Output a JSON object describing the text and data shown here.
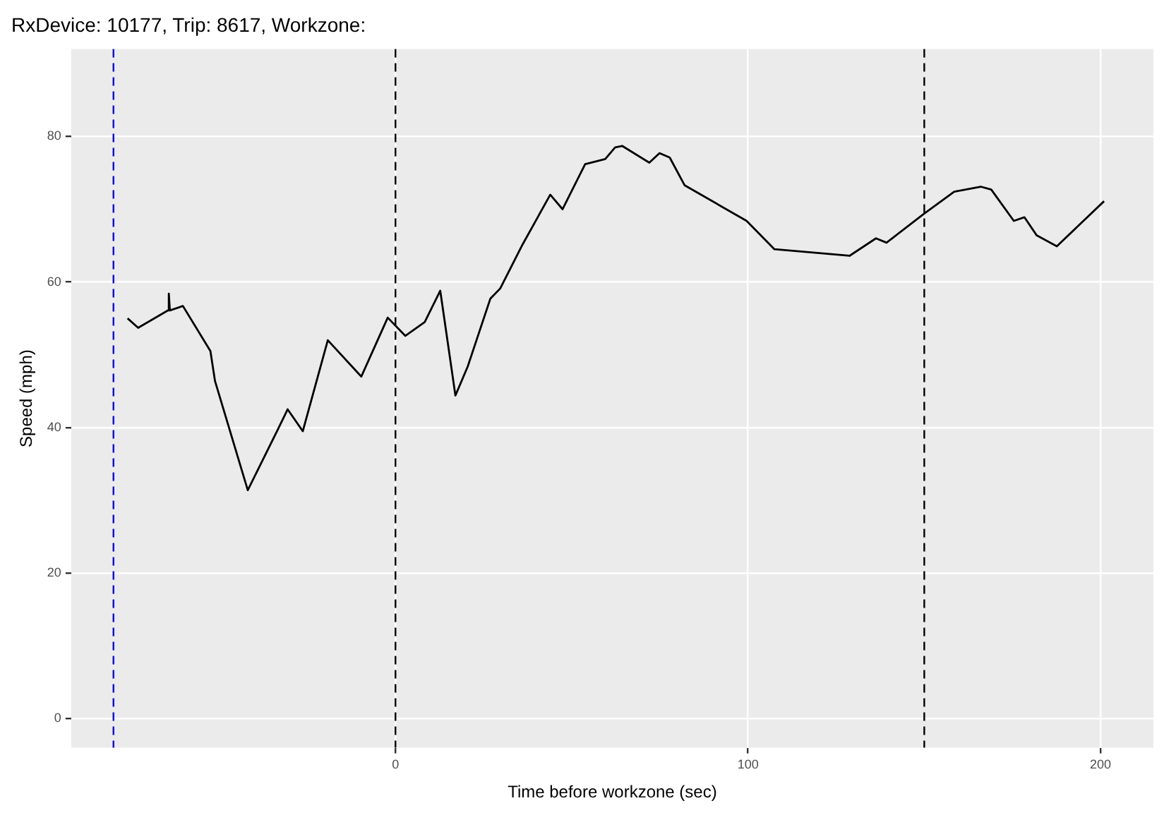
{
  "chart_data": {
    "type": "line",
    "title": "RxDevice: 10177, Trip: 8617, Workzone:",
    "xlabel": "Time before workzone (sec)",
    "ylabel": "Speed (mph)",
    "series": [
      {
        "color": "#000000",
        "x": [
          -76,
          -73,
          -64.5,
          -64.3,
          -64,
          -60.3,
          -52.5,
          -51.2,
          -41.9,
          -33.3,
          -30.6,
          -26.3,
          -19.2,
          -9.7,
          -2.2,
          2.8,
          8.3,
          12.7,
          17,
          20.5,
          26.9,
          29.7,
          36.1,
          43.9,
          47.4,
          53.8,
          59.5,
          62.3,
          64.3,
          72,
          74.9,
          77.8,
          82,
          99.6,
          107.5,
          128.8,
          136.3,
          139.3,
          150,
          158.5,
          166,
          169,
          175.4,
          178.4,
          181.9,
          187.6,
          201
        ],
        "values": [
          55,
          53.7,
          56.1,
          58.4,
          56.1,
          56.7,
          50.5,
          46.4,
          31.4,
          39.8,
          42.5,
          39.5,
          52,
          47,
          55.1,
          52.6,
          54.5,
          58.8,
          44.4,
          48.4,
          57.7,
          59.1,
          65.2,
          72,
          70,
          76.2,
          76.9,
          78.5,
          78.7,
          76.4,
          77.7,
          77.1,
          73.3,
          68.4,
          64.5,
          63.6,
          66,
          65.4,
          69.4,
          72.4,
          73.1,
          72.7,
          68.4,
          68.9,
          66.4,
          64.9,
          71.1
        ]
      }
    ],
    "ref_lines": [
      {
        "axis": "x",
        "value": -80,
        "color": "#0000ff",
        "line_style": "dashed"
      },
      {
        "axis": "x",
        "value": 0,
        "color": "#000000",
        "line_style": "dashed"
      },
      {
        "axis": "x",
        "value": 150,
        "color": "#000000",
        "line_style": "dashed"
      }
    ],
    "xlim": [
      -92,
      215
    ],
    "ylim": [
      -4,
      92
    ],
    "xticks": [
      0,
      100,
      200
    ],
    "yticks": [
      0,
      20,
      40,
      60,
      80
    ],
    "grid": true,
    "legend": false,
    "marker": "none",
    "line_style": "solid"
  }
}
